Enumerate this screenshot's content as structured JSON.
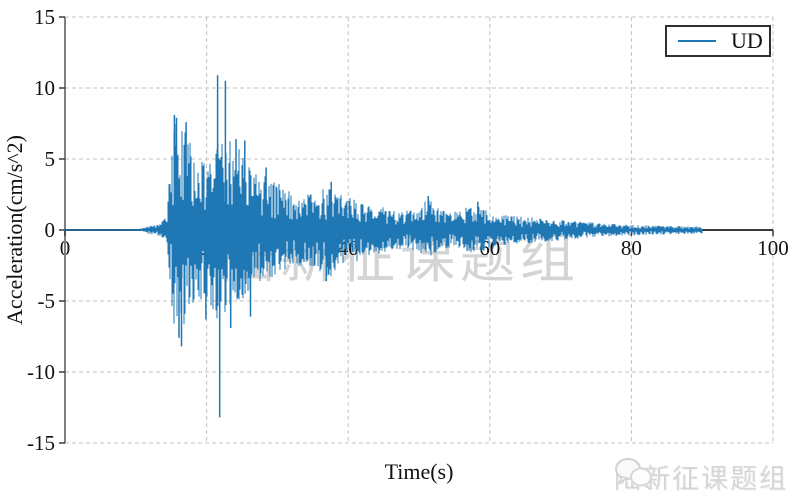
{
  "figure": {
    "background": "#ffffff",
    "watermark_center": "陆新征课题组",
    "watermark_footer": "陆新征课题组"
  },
  "legend": {
    "label": "UD",
    "line_color": "#1f77b4",
    "border_color": "#2f2f2f"
  },
  "colors": {
    "trace": "#1f77b4",
    "grid": "#c3c3c3",
    "spine": "#808080",
    "zero_axis": "#3a3a3a",
    "text": "#111111",
    "watermark": "#d4d4d4"
  },
  "chart_data": {
    "type": "line",
    "series_name": "UD",
    "title": "",
    "xlabel": "Time(s)",
    "ylabel": "Acceleration(cm/s^2)",
    "xlim": [
      0,
      100
    ],
    "ylim": [
      -15,
      15
    ],
    "xticks": [
      0,
      20,
      40,
      60,
      80,
      100
    ],
    "yticks": [
      -15,
      -10,
      -5,
      0,
      5,
      10,
      15
    ],
    "grid": "dashed",
    "legend_position": "upper right",
    "signal": {
      "description": "vertical (UD) ground acceleration record, quiet until ~12 s, strong burst 15-30 s, coda decaying to ~90 s",
      "t_start": 0,
      "t_end": 90,
      "envelope_t": [
        0,
        8,
        10.5,
        11.5,
        12.5,
        13.5,
        14.3,
        14.8,
        15.3,
        15.8,
        16.5,
        17.3,
        18.2,
        19.2,
        20.2,
        21.0,
        21.7,
        22.4,
        23.2,
        24.0,
        25.0,
        26.0,
        27.0,
        28.0,
        29.0,
        30.0,
        31.5,
        33.0,
        34.5,
        36.0,
        37.5,
        39.0,
        40.5,
        42.0,
        44.0,
        46.0,
        48.0,
        49.8,
        51.3,
        52.8,
        54.5,
        56.0,
        57.5,
        59.0,
        60.5,
        62.0,
        64.0,
        66.5,
        69.0,
        71.5,
        74.0,
        77.0,
        80.0,
        83.0,
        86.0,
        90.0
      ],
      "envelope_pos": [
        0.05,
        0.05,
        0.07,
        0.25,
        0.35,
        0.45,
        1.0,
        4.5,
        7.8,
        8.1,
        7.4,
        6.6,
        5.7,
        5.0,
        4.7,
        5.4,
        6.2,
        6.6,
        6.5,
        6.3,
        6.1,
        4.7,
        4.2,
        4.3,
        3.6,
        3.3,
        2.9,
        2.7,
        2.6,
        2.9,
        3.1,
        2.5,
        2.3,
        1.9,
        1.7,
        1.5,
        1.3,
        1.6,
        2.2,
        1.6,
        1.2,
        1.5,
        1.7,
        1.6,
        1.3,
        1.1,
        1.0,
        0.85,
        0.75,
        0.65,
        0.55,
        0.45,
        0.38,
        0.33,
        0.3,
        0.25
      ],
      "envelope_neg": [
        0.05,
        0.05,
        0.07,
        0.25,
        0.35,
        0.45,
        0.9,
        4.0,
        6.5,
        7.2,
        8.0,
        6.2,
        5.8,
        5.2,
        5.0,
        5.8,
        6.8,
        6.2,
        6.0,
        5.4,
        5.1,
        4.5,
        4.0,
        3.9,
        3.5,
        3.2,
        2.8,
        2.6,
        2.5,
        3.0,
        3.3,
        2.6,
        2.4,
        2.0,
        1.7,
        1.5,
        1.3,
        1.5,
        2.0,
        1.5,
        1.2,
        1.4,
        1.6,
        1.5,
        1.3,
        1.1,
        1.0,
        0.9,
        0.8,
        0.65,
        0.55,
        0.45,
        0.38,
        0.33,
        0.3,
        0.25
      ],
      "peaks": [
        {
          "t": 15.45,
          "a": 8.1
        },
        {
          "t": 15.75,
          "a": 7.9
        },
        {
          "t": 16.1,
          "a": -7.6
        },
        {
          "t": 16.45,
          "a": -8.2
        },
        {
          "t": 17.1,
          "a": 7.6
        },
        {
          "t": 19.9,
          "a": -6.3
        },
        {
          "t": 21.55,
          "a": 10.9
        },
        {
          "t": 21.85,
          "a": -13.2
        },
        {
          "t": 22.65,
          "a": 10.5
        },
        {
          "t": 23.4,
          "a": -6.9
        },
        {
          "t": 24.15,
          "a": 6.4
        },
        {
          "t": 25.4,
          "a": 6.3
        },
        {
          "t": 26.2,
          "a": -6.1
        },
        {
          "t": 28.4,
          "a": 4.4
        },
        {
          "t": 36.9,
          "a": -3.6
        },
        {
          "t": 37.6,
          "a": 3.4
        },
        {
          "t": 51.3,
          "a": 2.4
        },
        {
          "t": 58.3,
          "a": 2.0
        }
      ]
    }
  }
}
